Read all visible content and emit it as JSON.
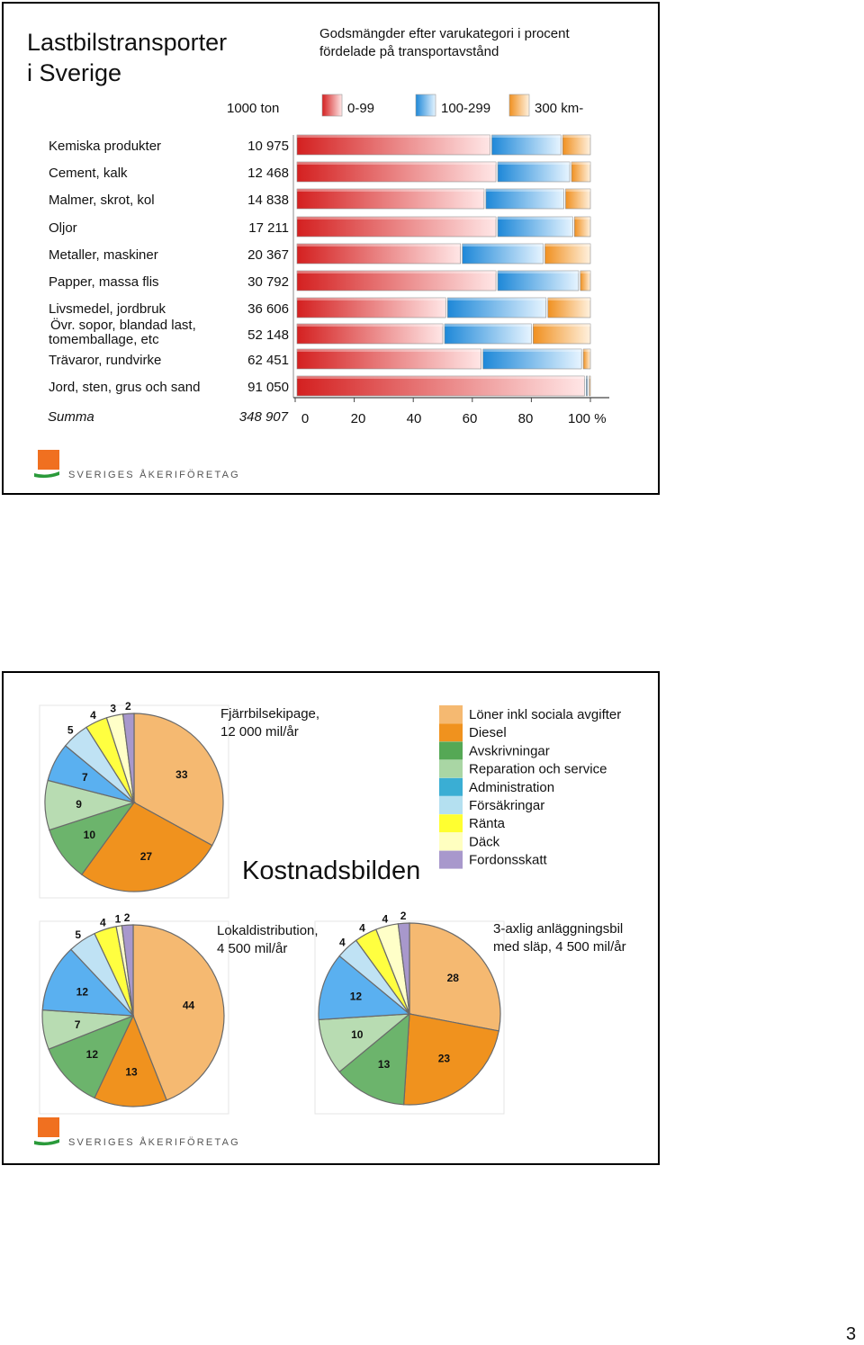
{
  "panel1": {
    "title_line1": "Lastbilstransporter",
    "title_line2": "i Sverige",
    "subtitle_line1": "Godsmängder efter varukategori i procent",
    "subtitle_line2": "fördelade på transportavstånd",
    "unit_label": "1000 ton",
    "legend": [
      {
        "label": "0-99",
        "color": "#d42020"
      },
      {
        "label": "100-299",
        "color": "#1e88d8"
      },
      {
        "label": "300 km-",
        "color": "#f09020"
      }
    ],
    "logo_text": "SVERIGES ÅKERIFÖRETAG"
  },
  "chart_data": [
    {
      "type": "bar",
      "orientation": "horizontal",
      "stacked": true,
      "categories": [
        "Kemiska produkter",
        "Cement, kalk",
        "Malmer, skrot, kol",
        "Oljor",
        "Metaller, maskiner",
        "Papper, massa flis",
        "Livsmedel, jordbruk",
        "Övr. sopor, blandad last, tomemballage, etc",
        "Trävaror, rundvirke",
        "Jord, sten, grus och sand"
      ],
      "category_lines": [
        [
          "Kemiska produkter"
        ],
        [
          "Cement, kalk"
        ],
        [
          "Malmer, skrot, kol"
        ],
        [
          "Oljor"
        ],
        [
          "Metaller, maskiner"
        ],
        [
          "Papper, massa flis"
        ],
        [
          "Livsmedel, jordbruk"
        ],
        [
          "Övr. sopor, blandad last,",
          "tomemballage, etc"
        ],
        [
          "Trävaror, rundvirke"
        ],
        [
          "Jord, sten, grus och sand"
        ]
      ],
      "tonnage": [
        "10 975",
        "12 468",
        "14 838",
        "17 211",
        "20 367",
        "30 792",
        "36 606",
        "52 148",
        "62 451",
        "91 050"
      ],
      "summa_label": "Summa",
      "summa_value": "348 907",
      "series": [
        {
          "name": "0-99",
          "values": [
            66,
            68,
            64,
            68,
            56,
            68,
            51,
            50,
            63,
            98
          ]
        },
        {
          "name": "100-299",
          "values": [
            24,
            25,
            27,
            26,
            28,
            28,
            34,
            30,
            34,
            1
          ]
        },
        {
          "name": "300 km-",
          "values": [
            10,
            7,
            9,
            6,
            16,
            4,
            15,
            20,
            3,
            1
          ]
        }
      ],
      "xlim": [
        0,
        100
      ],
      "xticks": [
        "0",
        "20",
        "40",
        "60",
        "80",
        "100 %"
      ]
    },
    {
      "type": "pie",
      "title_line1": "Fjärrbilsekipage,",
      "title_line2": "12 000 mil/år",
      "values": [
        33,
        27,
        10,
        9,
        7,
        5,
        4,
        3,
        2
      ]
    },
    {
      "type": "pie",
      "title_line1": "Lokaldistribution,",
      "title_line2": "4 500 mil/år",
      "values": [
        44,
        13,
        12,
        7,
        12,
        5,
        4,
        1,
        2
      ]
    },
    {
      "type": "pie",
      "title_line1": "3-axlig anläggningsbil",
      "title_line2": "med släp, 4 500 mil/år",
      "values": [
        28,
        23,
        13,
        10,
        12,
        4,
        4,
        4,
        2
      ]
    }
  ],
  "panel2": {
    "main_title": "Kostnadsbilden",
    "legend": [
      {
        "label": "Löner inkl sociala avgifter",
        "color": "#f5b971"
      },
      {
        "label": "Diesel",
        "color": "#f0921e"
      },
      {
        "label": "Avskrivningar",
        "color": "#55a855"
      },
      {
        "label": "Reparation och service",
        "color": "#a9d6a4"
      },
      {
        "label": "Administration",
        "color": "#3aaed4"
      },
      {
        "label": "Försäkringar",
        "color": "#b4e0f0"
      },
      {
        "label": "Ränta",
        "color": "#ffff30"
      },
      {
        "label": "Däck",
        "color": "#ffffc0"
      },
      {
        "label": "Fordonsskatt",
        "color": "#a898cc"
      }
    ],
    "pie_colors": [
      "#f5b971",
      "#f0921e",
      "#6cb46c",
      "#b8dcb2",
      "#5ab0f0",
      "#bfe2f4",
      "#ffff40",
      "#ffffc8",
      "#a898cc"
    ],
    "logo_text": "SVERIGES ÅKERIFÖRETAG"
  },
  "page_number": "3"
}
